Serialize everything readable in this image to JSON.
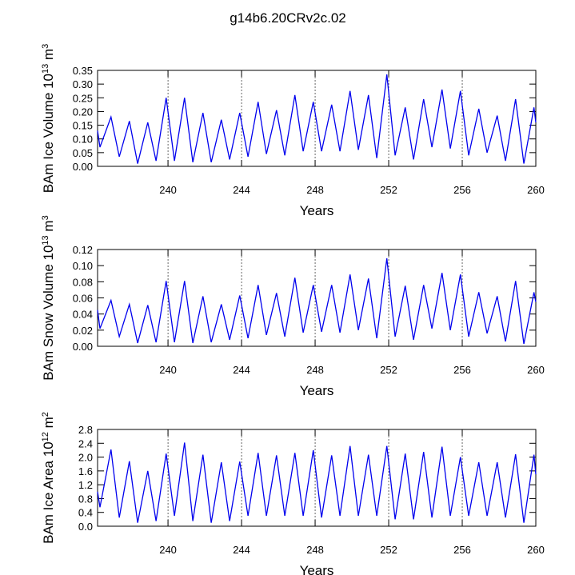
{
  "title": "g14b6.20CRv2c.02",
  "chart_data": [
    {
      "type": "line",
      "xlabel": "Years",
      "ylabel": {
        "text": "BAm Ice Volume 10",
        "exp": "13",
        "unit": " m",
        "unit_exp": "3"
      },
      "xlim": [
        236.17,
        260
      ],
      "xticks": [
        240,
        244,
        248,
        252,
        256,
        260
      ],
      "grid": "x-dashed",
      "ylim": [
        0,
        0.35
      ],
      "yticks": [
        {
          "value": 0,
          "label": "0.00"
        },
        {
          "value": 0.05,
          "label": "0.05"
        },
        {
          "value": 0.1,
          "label": "0.10"
        },
        {
          "value": 0.15,
          "label": "0.15"
        },
        {
          "value": 0.2,
          "label": "0.20"
        },
        {
          "value": 0.25,
          "label": "0.25"
        },
        {
          "value": 0.3,
          "label": "0.30"
        },
        {
          "value": 0.35,
          "label": "0.35"
        }
      ],
      "x": [
        236.17,
        236.3,
        236.9,
        237.35,
        237.9,
        238.35,
        238.9,
        239.35,
        239.9,
        240.35,
        240.9,
        241.35,
        241.9,
        242.35,
        242.9,
        243.35,
        243.9,
        244.35,
        244.9,
        245.35,
        245.9,
        246.35,
        246.9,
        247.35,
        247.9,
        248.35,
        248.9,
        249.35,
        249.9,
        250.35,
        250.9,
        251.35,
        251.9,
        252.35,
        252.9,
        253.35,
        253.9,
        254.35,
        254.9,
        255.35,
        255.9,
        256.35,
        256.9,
        257.35,
        257.9,
        258.35,
        258.9,
        259.35,
        259.9,
        260
      ],
      "series": [
        {
          "color": "#0000ee",
          "values": [
            0.13,
            0.07,
            0.18,
            0.035,
            0.165,
            0.01,
            0.16,
            0.02,
            0.25,
            0.02,
            0.25,
            0.015,
            0.195,
            0.015,
            0.17,
            0.025,
            0.195,
            0.035,
            0.235,
            0.045,
            0.205,
            0.04,
            0.26,
            0.055,
            0.235,
            0.055,
            0.225,
            0.055,
            0.275,
            0.06,
            0.26,
            0.03,
            0.335,
            0.04,
            0.215,
            0.025,
            0.245,
            0.07,
            0.28,
            0.065,
            0.275,
            0.04,
            0.21,
            0.05,
            0.185,
            0.02,
            0.245,
            0.01,
            0.215,
            0.16
          ]
        }
      ]
    },
    {
      "type": "line",
      "xlabel": "Years",
      "ylabel": {
        "text": "BAm Snow Volume 10",
        "exp": "13",
        "unit": " m",
        "unit_exp": "3"
      },
      "xlim": [
        236.17,
        260
      ],
      "xticks": [
        240,
        244,
        248,
        252,
        256,
        260
      ],
      "grid": "x-dashed",
      "ylim": [
        0,
        0.12
      ],
      "yticks": [
        {
          "value": 0,
          "label": "0.00"
        },
        {
          "value": 0.02,
          "label": "0.02"
        },
        {
          "value": 0.04,
          "label": "0.04"
        },
        {
          "value": 0.06,
          "label": "0.06"
        },
        {
          "value": 0.08,
          "label": "0.08"
        },
        {
          "value": 0.1,
          "label": "0.10"
        },
        {
          "value": 0.12,
          "label": "0.12"
        }
      ],
      "x": [
        236.17,
        236.3,
        236.9,
        237.35,
        237.9,
        238.35,
        238.9,
        239.35,
        239.9,
        240.35,
        240.9,
        241.35,
        241.9,
        242.35,
        242.9,
        243.35,
        243.9,
        244.35,
        244.9,
        245.35,
        245.9,
        246.35,
        246.9,
        247.35,
        247.9,
        248.35,
        248.9,
        249.35,
        249.9,
        250.35,
        250.9,
        251.35,
        251.9,
        252.35,
        252.9,
        253.35,
        253.9,
        254.35,
        254.9,
        255.35,
        255.9,
        256.35,
        256.9,
        257.35,
        257.9,
        258.35,
        258.9,
        259.35,
        259.9,
        260
      ],
      "series": [
        {
          "color": "#0000ee",
          "values": [
            0.045,
            0.022,
            0.057,
            0.012,
            0.052,
            0.004,
            0.051,
            0.005,
            0.081,
            0.005,
            0.081,
            0.004,
            0.062,
            0.005,
            0.052,
            0.008,
            0.063,
            0.01,
            0.076,
            0.014,
            0.066,
            0.012,
            0.085,
            0.017,
            0.076,
            0.018,
            0.076,
            0.017,
            0.089,
            0.02,
            0.084,
            0.01,
            0.109,
            0.012,
            0.075,
            0.008,
            0.076,
            0.022,
            0.091,
            0.02,
            0.089,
            0.012,
            0.067,
            0.016,
            0.062,
            0.006,
            0.081,
            0.003,
            0.067,
            0.055
          ]
        }
      ]
    },
    {
      "type": "line",
      "xlabel": "Years",
      "ylabel": {
        "text": "BAm Ice Area 10",
        "exp": "12",
        "unit": " m",
        "unit_exp": "2"
      },
      "xlim": [
        236.17,
        260
      ],
      "xticks": [
        240,
        244,
        248,
        252,
        256,
        260
      ],
      "grid": "x-dashed",
      "ylim": [
        0,
        2.8
      ],
      "yticks": [
        {
          "value": 0,
          "label": "0.0"
        },
        {
          "value": 0.4,
          "label": "0.4"
        },
        {
          "value": 0.8,
          "label": "0.8"
        },
        {
          "value": 1.2,
          "label": "1.2"
        },
        {
          "value": 1.6,
          "label": "1.6"
        },
        {
          "value": 2,
          "label": "2.0"
        },
        {
          "value": 2.4,
          "label": "2.4"
        },
        {
          "value": 2.8,
          "label": "2.8"
        }
      ],
      "x": [
        236.17,
        236.3,
        236.9,
        237.35,
        237.9,
        238.35,
        238.9,
        239.35,
        239.9,
        240.35,
        240.9,
        241.35,
        241.9,
        242.35,
        242.9,
        243.35,
        243.9,
        244.35,
        244.9,
        245.35,
        245.9,
        246.35,
        246.9,
        247.35,
        247.9,
        248.35,
        248.9,
        249.35,
        249.9,
        250.35,
        250.9,
        251.35,
        251.9,
        252.35,
        252.9,
        253.35,
        253.9,
        254.35,
        254.9,
        255.35,
        255.9,
        256.35,
        256.9,
        257.35,
        257.9,
        258.35,
        258.9,
        259.35,
        259.9,
        260
      ],
      "series": [
        {
          "color": "#0000ee",
          "values": [
            1.0,
            0.55,
            2.22,
            0.25,
            1.88,
            0.1,
            1.6,
            0.15,
            2.1,
            0.3,
            2.42,
            0.15,
            2.07,
            0.1,
            1.85,
            0.15,
            1.87,
            0.3,
            2.12,
            0.3,
            2.05,
            0.3,
            2.12,
            0.3,
            2.2,
            0.25,
            2.05,
            0.3,
            2.32,
            0.3,
            2.07,
            0.3,
            2.32,
            0.2,
            2.1,
            0.2,
            2.15,
            0.25,
            2.3,
            0.3,
            2.0,
            0.3,
            1.85,
            0.3,
            1.85,
            0.25,
            2.08,
            0.1,
            2.07,
            1.5
          ]
        }
      ]
    }
  ]
}
